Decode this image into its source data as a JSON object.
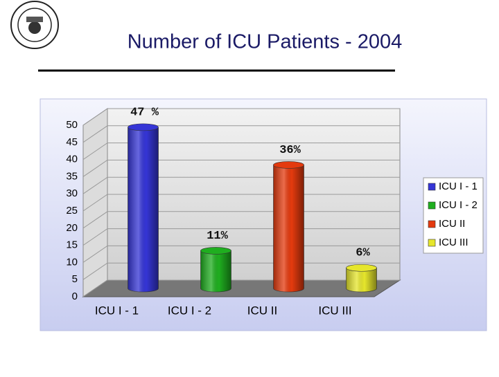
{
  "chart_data": {
    "type": "bar",
    "title": "Number of ICU Patients - 2004",
    "categories": [
      "ICU I - 1",
      "ICU I - 2",
      "ICU II",
      "ICU III"
    ],
    "values": [
      47,
      11,
      36,
      6
    ],
    "value_labels": [
      "47 %",
      "11%",
      "36%",
      "6%"
    ],
    "colors": [
      "#3535d6",
      "#1fae1f",
      "#e43a0e",
      "#e6e62c"
    ],
    "ylim": [
      0,
      50
    ],
    "yticks": [
      0,
      5,
      10,
      15,
      20,
      25,
      30,
      35,
      40,
      45,
      50
    ],
    "grid": true,
    "legend": "right"
  }
}
